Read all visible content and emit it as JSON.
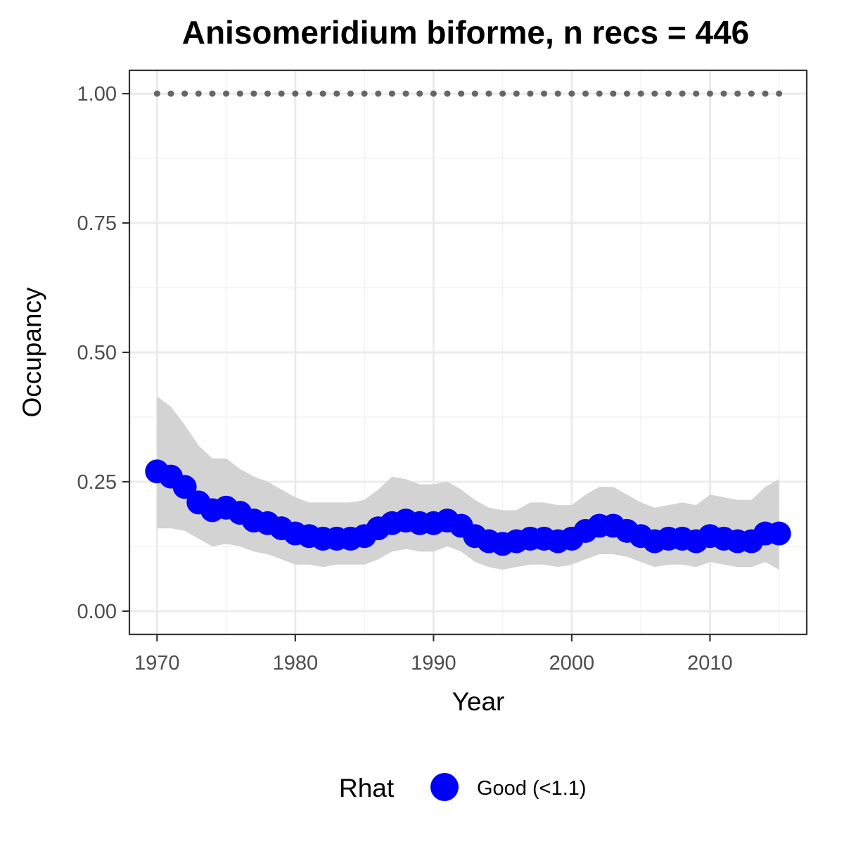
{
  "chart_data": {
    "type": "line",
    "title": "Anisomeridium biforme, n recs = 446",
    "xlabel": "Year",
    "ylabel": "Occupancy",
    "xlim": [
      1968,
      2017
    ],
    "ylim": [
      -0.045,
      1.045
    ],
    "xticks": [
      1970,
      1980,
      1990,
      2000,
      2010
    ],
    "yticks": [
      0.0,
      0.25,
      0.5,
      0.75,
      1.0
    ],
    "ytick_labels": [
      "0.00",
      "0.25",
      "0.50",
      "0.75",
      "1.00"
    ],
    "grid": true,
    "x": [
      1970,
      1971,
      1972,
      1973,
      1974,
      1975,
      1976,
      1977,
      1978,
      1979,
      1980,
      1981,
      1982,
      1983,
      1984,
      1985,
      1986,
      1987,
      1988,
      1989,
      1990,
      1991,
      1992,
      1993,
      1994,
      1995,
      1996,
      1997,
      1998,
      1999,
      2000,
      2001,
      2002,
      2003,
      2004,
      2005,
      2006,
      2007,
      2008,
      2009,
      2010,
      2011,
      2012,
      2013,
      2014,
      2015
    ],
    "series": [
      {
        "values": [
          0.27,
          0.26,
          0.24,
          0.21,
          0.195,
          0.2,
          0.19,
          0.175,
          0.17,
          0.16,
          0.15,
          0.145,
          0.14,
          0.14,
          0.14,
          0.145,
          0.16,
          0.17,
          0.175,
          0.17,
          0.17,
          0.175,
          0.165,
          0.145,
          0.135,
          0.13,
          0.135,
          0.14,
          0.14,
          0.135,
          0.14,
          0.155,
          0.165,
          0.165,
          0.155,
          0.145,
          0.135,
          0.14,
          0.14,
          0.135,
          0.145,
          0.14,
          0.135,
          0.135,
          0.15,
          0.15
        ],
        "lower": [
          0.16,
          0.16,
          0.155,
          0.14,
          0.125,
          0.13,
          0.125,
          0.115,
          0.11,
          0.1,
          0.09,
          0.09,
          0.085,
          0.09,
          0.09,
          0.09,
          0.1,
          0.115,
          0.12,
          0.115,
          0.115,
          0.125,
          0.115,
          0.095,
          0.085,
          0.08,
          0.085,
          0.09,
          0.09,
          0.085,
          0.09,
          0.1,
          0.11,
          0.11,
          0.105,
          0.095,
          0.085,
          0.09,
          0.09,
          0.085,
          0.095,
          0.09,
          0.085,
          0.085,
          0.095,
          0.08
        ],
        "upper": [
          0.415,
          0.395,
          0.36,
          0.32,
          0.295,
          0.295,
          0.275,
          0.26,
          0.25,
          0.235,
          0.22,
          0.21,
          0.21,
          0.21,
          0.21,
          0.215,
          0.235,
          0.26,
          0.255,
          0.245,
          0.245,
          0.25,
          0.235,
          0.215,
          0.2,
          0.195,
          0.195,
          0.21,
          0.21,
          0.205,
          0.205,
          0.225,
          0.24,
          0.24,
          0.225,
          0.21,
          0.2,
          0.205,
          0.21,
          0.205,
          0.225,
          0.22,
          0.215,
          0.215,
          0.24,
          0.255
        ],
        "color": "#0000ff"
      },
      {
        "values": [
          1,
          1,
          1,
          1,
          1,
          1,
          1,
          1,
          1,
          1,
          1,
          1,
          1,
          1,
          1,
          1,
          1,
          1,
          1,
          1,
          1,
          1,
          1,
          1,
          1,
          1,
          1,
          1,
          1,
          1,
          1,
          1,
          1,
          1,
          1,
          1,
          1,
          1,
          1,
          1,
          1,
          1,
          1,
          1,
          1,
          1
        ],
        "color": "#666666",
        "style": "dotted"
      }
    ],
    "ribbon_color": "#d3d3d3",
    "legend": {
      "position": "bottom",
      "title": "Rhat",
      "entries": [
        {
          "label": "Good (<1.1)",
          "color": "#0000ff"
        }
      ]
    }
  }
}
